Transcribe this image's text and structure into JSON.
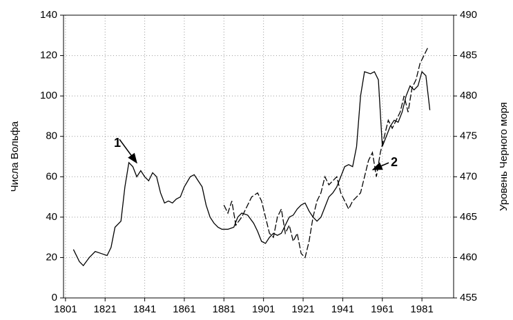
{
  "chart_data": {
    "type": "line",
    "ylabel": "Числа Вольфа",
    "y2label": "Уровень Черного моря",
    "xlim": [
      1800,
      1997
    ],
    "xticks": [
      1801,
      1821,
      1841,
      1861,
      1881,
      1901,
      1921,
      1941,
      1961,
      1981
    ],
    "ylim": [
      0,
      140
    ],
    "yticks": [
      0,
      20,
      40,
      60,
      80,
      100,
      120,
      140
    ],
    "y2lim": [
      455,
      490
    ],
    "y2ticks": [
      455,
      460,
      465,
      470,
      475,
      480,
      485,
      490
    ],
    "grid": true,
    "series": [
      {
        "color": "#000000",
        "x": [
          1805,
          1808,
          1810,
          1813,
          1816,
          1819,
          1822,
          1824,
          1826,
          1829,
          1831,
          1833,
          1835,
          1837,
          1839,
          1841,
          1843,
          1845,
          1847,
          1849,
          1851,
          1853,
          1855,
          1857,
          1859,
          1861,
          1864,
          1866,
          1868,
          1870,
          1872,
          1874,
          1876,
          1878,
          1880,
          1883,
          1886,
          1888,
          1890,
          1893,
          1896,
          1898,
          1900,
          1902,
          1904,
          1906,
          1908,
          1910,
          1912,
          1914,
          1916,
          1918,
          1920,
          1922,
          1924,
          1926,
          1928,
          1930,
          1932,
          1934,
          1936,
          1938,
          1940,
          1942,
          1944,
          1946,
          1948,
          1950,
          1952,
          1955,
          1957,
          1959,
          1961,
          1963,
          1965,
          1967,
          1969,
          1971,
          1973,
          1975,
          1977,
          1979,
          1981,
          1983,
          1985
        ],
        "values": [
          24,
          18,
          16,
          20,
          23,
          22,
          21,
          25,
          35,
          38,
          55,
          67,
          65,
          60,
          63,
          60,
          58,
          62,
          60,
          52,
          47,
          48,
          47,
          49,
          50,
          55,
          60,
          61,
          58,
          55,
          46,
          40,
          37,
          35,
          34,
          34,
          35,
          40,
          42,
          41,
          37,
          33,
          28,
          27,
          30,
          32,
          31,
          32,
          36,
          40,
          41,
          44,
          46,
          47,
          43,
          40,
          38,
          40,
          45,
          50,
          52,
          55,
          60,
          65,
          66,
          65,
          75,
          100,
          112,
          111,
          112,
          108,
          75,
          80,
          85,
          88,
          87,
          92,
          100,
          105,
          103,
          105,
          112,
          110,
          93
        ]
      },
      {
        "color": "#000000",
        "axis": "y2",
        "dashed": true,
        "x": [
          1881,
          1883,
          1885,
          1887,
          1890,
          1892,
          1895,
          1898,
          1900,
          1902,
          1904,
          1906,
          1908,
          1910,
          1912,
          1914,
          1916,
          1918,
          1920,
          1922,
          1924,
          1926,
          1928,
          1930,
          1932,
          1934,
          1936,
          1938,
          1940,
          1942,
          1944,
          1946,
          1948,
          1950,
          1952,
          1954,
          1956,
          1958,
          1960,
          1962,
          1964,
          1966,
          1968,
          1970,
          1972,
          1974,
          1976,
          1978,
          1980,
          1982,
          1984
        ],
        "values": [
          466.5,
          465.5,
          467,
          464,
          465,
          466,
          467.5,
          468,
          467,
          465,
          463,
          462.5,
          465,
          466,
          463,
          464,
          462,
          463,
          460.5,
          460,
          462,
          465,
          467,
          468,
          470,
          469,
          469.5,
          470,
          468,
          467,
          466,
          467,
          467.5,
          468,
          470,
          472,
          473,
          470,
          473,
          475,
          477,
          476,
          477,
          478,
          480,
          478,
          481,
          482,
          484,
          485,
          486
        ]
      }
    ],
    "annotations": [
      "1",
      "2"
    ]
  }
}
